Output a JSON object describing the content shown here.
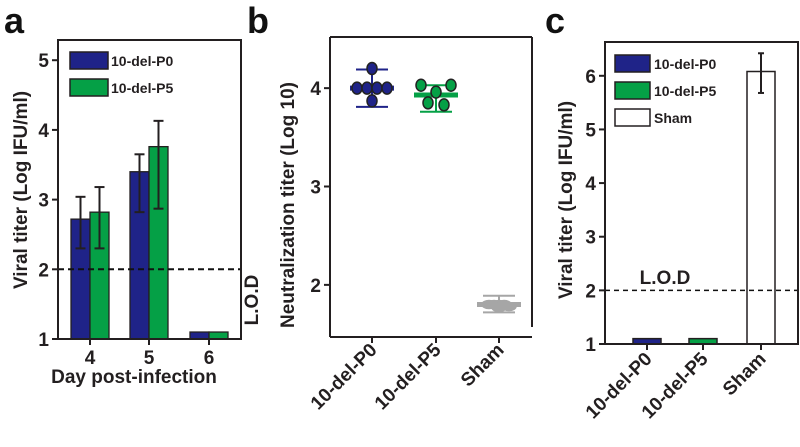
{
  "colors": {
    "p0": "#1f2388",
    "p5": "#05a046",
    "sham": "#ffffff",
    "sham_points": "#a6a6a6",
    "axis": "#231f20"
  },
  "chart_data": [
    {
      "panel": "a",
      "type": "bar",
      "ylabel": "Viral titer (Log IFU/ml)",
      "xlabel": "Day post-infection",
      "categories": [
        "4",
        "5",
        "6"
      ],
      "yticks": [
        "1",
        "2",
        "3",
        "4",
        "5"
      ],
      "ylim": [
        1,
        5.29
      ],
      "lod": {
        "label": "L.O.D",
        "value": 2
      },
      "legend": [
        "10-del-P0",
        "10-del-P5"
      ],
      "legend_position": "top-left",
      "series": [
        {
          "name": "10-del-P0",
          "values": [
            2.72,
            3.4,
            1.1
          ],
          "err_low": [
            2.3,
            2.82,
            1.1
          ],
          "err_high": [
            3.04,
            3.65,
            1.1
          ]
        },
        {
          "name": "10-del-P5",
          "values": [
            2.82,
            3.76,
            1.1
          ],
          "err_low": [
            2.3,
            2.87,
            1.1
          ],
          "err_high": [
            3.18,
            4.13,
            1.1
          ]
        }
      ]
    },
    {
      "panel": "b",
      "type": "scatter",
      "ylabel": "Neutralization titer (Log 10)",
      "categories": [
        "10-del-P0",
        "10-del-P5",
        "Sham"
      ],
      "yticks": [
        "2",
        "3",
        "4"
      ],
      "ylim": [
        1.47,
        4.52
      ],
      "groups": [
        {
          "name": "10-del-P0",
          "points": [
            4.2,
            4.0,
            4.0,
            4.0,
            4.0,
            3.87
          ],
          "mean": 4.0,
          "err_low": 3.81,
          "err_high": 4.19
        },
        {
          "name": "10-del-P5",
          "points": [
            4.03,
            4.03,
            3.96,
            3.85,
            3.83
          ],
          "mean": 3.93,
          "err_low": 3.76,
          "err_high": 4.03
        },
        {
          "name": "Sham",
          "points": [
            1.8,
            1.8,
            1.8,
            1.8,
            1.78,
            1.77
          ],
          "mean": 1.8,
          "err_low": 1.72,
          "err_high": 1.89
        }
      ]
    },
    {
      "panel": "c",
      "type": "bar",
      "ylabel": "Viral titer (Log IFU/ml)",
      "categories": [
        "10-del-P0",
        "10-del-P5",
        "Sham"
      ],
      "yticks": [
        "1",
        "2",
        "3",
        "4",
        "5",
        "6"
      ],
      "ylim": [
        1,
        6.63
      ],
      "lod": {
        "label": "L.O.D",
        "value": 2
      },
      "legend": [
        "10-del-P0",
        "10-del-P5",
        "Sham"
      ],
      "legend_position": "top-left",
      "values": [
        1.1,
        1.1,
        6.08
      ],
      "err_low": [
        1.1,
        1.1,
        5.68
      ],
      "err_high": [
        1.1,
        1.1,
        6.42
      ]
    }
  ]
}
